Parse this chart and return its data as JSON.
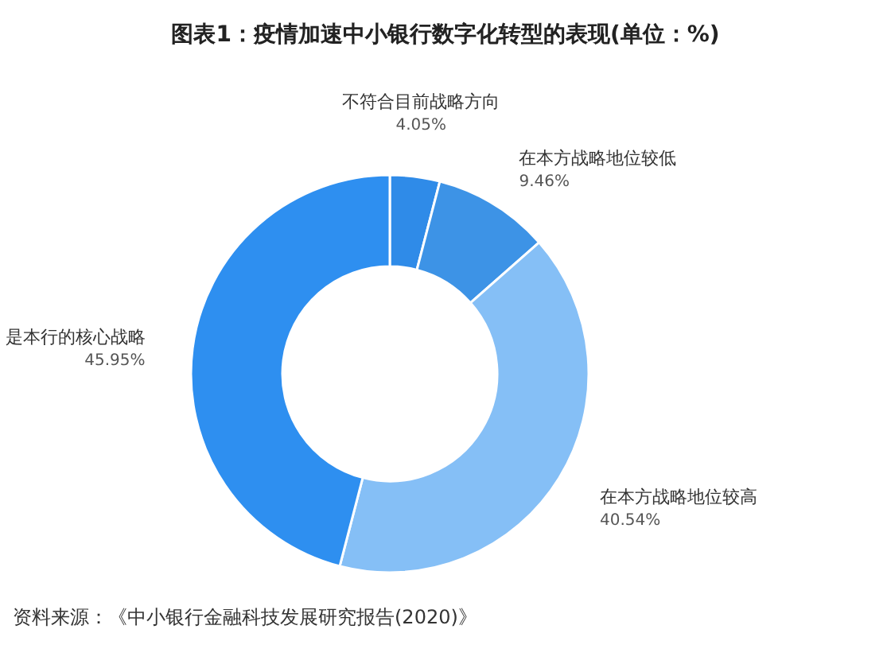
{
  "chart_data": {
    "type": "donut",
    "title": "图表1：疫情加速中小银行数字化转型的表现(单位：%)",
    "categories": [
      "不符合目前战略方向",
      "在本方战略地位较低",
      "在本方战略地位较高",
      "是本行的核心战略"
    ],
    "values": [
      4.05,
      9.46,
      40.54,
      45.95
    ],
    "value_labels": [
      "4.05%",
      "9.46%",
      "40.54%",
      "45.95%"
    ],
    "colors": [
      "#2f8be8",
      "#3d93e6",
      "#85bff6",
      "#2e8ff0"
    ],
    "annotations": [
      "资料来源：《中小银行金融科技发展研究报告(2020)》"
    ]
  }
}
